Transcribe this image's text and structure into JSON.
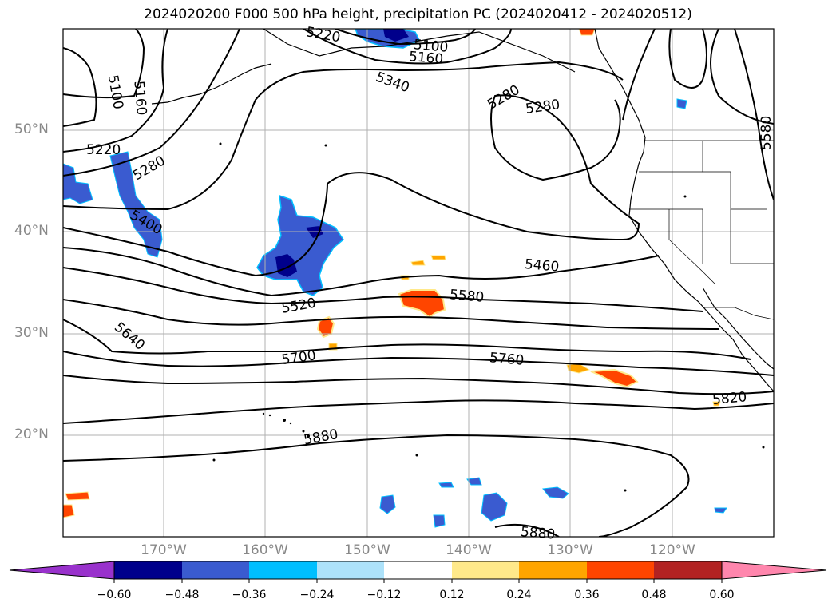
{
  "title": "2024020200 F000 500 hPa height, precipitation PC (2024020412 - 2024020512)",
  "lat_labels": [
    "50°N",
    "40°N",
    "30°N",
    "20°N"
  ],
  "lon_labels": [
    "170°W",
    "160°W",
    "150°W",
    "140°W",
    "130°W",
    "120°W"
  ],
  "contour_labels": [
    "5220",
    "5100",
    "5160",
    "5100",
    "5160",
    "5340",
    "5280",
    "5280",
    "5220",
    "5280",
    "5400",
    "5460",
    "5520",
    "5580",
    "5640",
    "5700",
    "5760",
    "5820",
    "5880",
    "5880",
    "5580"
  ],
  "colorbar": {
    "ticks": [
      "−0.60",
      "−0.48",
      "−0.36",
      "−0.24",
      "−0.12",
      "0.12",
      "0.24",
      "0.36",
      "0.48",
      "0.60"
    ],
    "colors": [
      "#9932CC",
      "#00008B",
      "#3A5BD0",
      "#00BFFF",
      "#ADE2FA",
      "#FFFFFF",
      "#FFE98A",
      "#FFA500",
      "#FF4500",
      "#B22222",
      "#FF86AD"
    ]
  },
  "precip_colors": {
    "neg_light": "#ADE2FA",
    "neg_mid": "#00BFFF",
    "neg_strong": "#3A5BD0",
    "neg_max": "#00008B",
    "pos_light": "#FFE98A",
    "pos_mid": "#FFA500",
    "pos_strong": "#FF4500"
  }
}
